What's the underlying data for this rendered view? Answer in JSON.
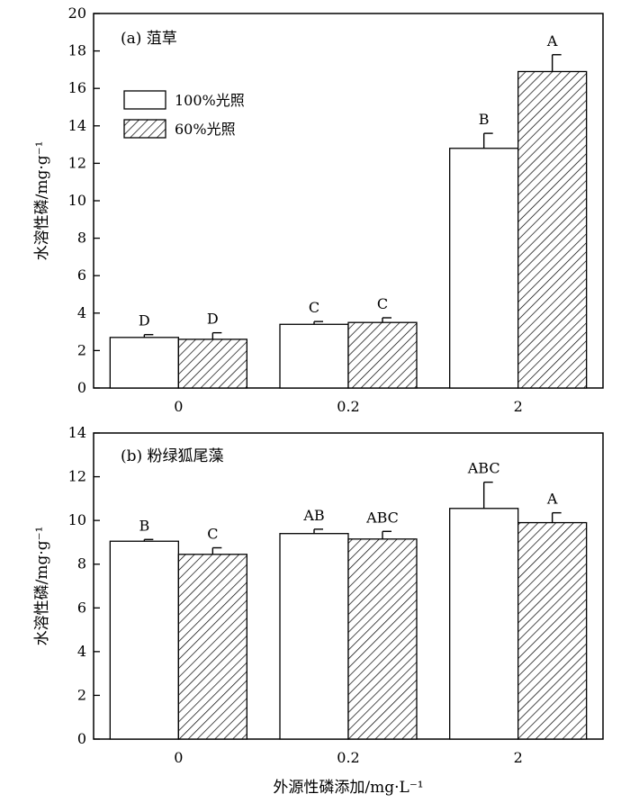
{
  "chart_data": [
    {
      "type": "bar",
      "title": "(a) 菹草",
      "ylabel": "水溶性磷/mg·g⁻¹",
      "xlabel": "",
      "categories": [
        "0",
        "0.2",
        "2"
      ],
      "ylim": [
        0,
        20
      ],
      "yticks": [
        0,
        2,
        4,
        6,
        8,
        10,
        12,
        14,
        16,
        18,
        20
      ],
      "legend": {
        "placement": "upper-left"
      },
      "series": [
        {
          "name": "100%光照",
          "pattern": "white",
          "values": [
            2.7,
            3.4,
            12.8
          ],
          "errors": [
            0.15,
            0.15,
            0.8
          ],
          "letters": [
            "D",
            "C",
            "B"
          ]
        },
        {
          "name": "60%光照",
          "pattern": "hatched",
          "values": [
            2.6,
            3.5,
            16.9
          ],
          "errors": [
            0.35,
            0.25,
            0.9
          ],
          "letters": [
            "D",
            "C",
            "A"
          ]
        }
      ]
    },
    {
      "type": "bar",
      "title": "(b) 粉绿狐尾藻",
      "ylabel": "水溶性磷/mg·g⁻¹",
      "xlabel": "外源性磷添加/mg·L⁻¹",
      "categories": [
        "0",
        "0.2",
        "2"
      ],
      "ylim": [
        0,
        14
      ],
      "yticks": [
        0,
        2,
        4,
        6,
        8,
        10,
        12,
        14
      ],
      "series": [
        {
          "name": "100%光照",
          "pattern": "white",
          "values": [
            9.05,
            9.4,
            10.55
          ],
          "errors": [
            0.08,
            0.2,
            1.2
          ],
          "letters": [
            "B",
            "AB",
            "ABC"
          ]
        },
        {
          "name": "60%光照",
          "pattern": "hatched",
          "values": [
            8.45,
            9.15,
            9.9
          ],
          "errors": [
            0.3,
            0.35,
            0.45
          ],
          "letters": [
            "C",
            "ABC",
            "A"
          ]
        }
      ]
    }
  ]
}
